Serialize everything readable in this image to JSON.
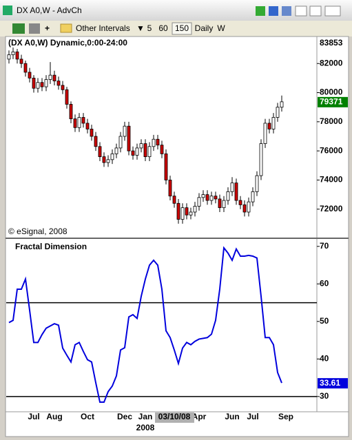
{
  "window": {
    "title": "DX A0,W - AdvCh"
  },
  "toolbar": {
    "interval_menu": "Other Intervals",
    "intervals": [
      "5",
      "60",
      "150",
      "Daily",
      "W"
    ]
  },
  "chart_data": [
    {
      "type": "candlestick",
      "title": "(DX A0,W) Dynamic,0:00-24:00",
      "copyright": "© eSignal, 2008",
      "open": [
        82300,
        82600,
        82800,
        82300,
        82000,
        81400,
        81000,
        80300,
        80700,
        80400,
        80900,
        81200,
        80800,
        80500,
        80200,
        79200,
        78200,
        77600,
        78300,
        77900,
        77500,
        77000,
        76300,
        75600,
        75200,
        75400,
        75800,
        76200,
        77000,
        77700,
        76000,
        75700,
        76200,
        76500,
        75600,
        76300,
        76800,
        76400,
        75800,
        74000,
        72900,
        72400,
        71300,
        72100,
        71600,
        71800,
        72200,
        72800,
        73000,
        72600,
        72900,
        72700,
        72100,
        72600,
        73200,
        73800,
        72600,
        72300,
        71800,
        72500,
        73200,
        74300,
        76500,
        77900,
        77500,
        78300,
        79000,
        null
      ],
      "high": [
        82900,
        83100,
        83000,
        82600,
        82200,
        81700,
        81200,
        81000,
        81000,
        81200,
        82100,
        81500,
        81100,
        80800,
        80400,
        79400,
        78500,
        78600,
        78600,
        78200,
        77800,
        77300,
        76600,
        75900,
        75700,
        76100,
        76500,
        77300,
        78000,
        78000,
        76300,
        76500,
        76800,
        76800,
        76600,
        77100,
        77100,
        76700,
        76100,
        74300,
        73200,
        72700,
        72400,
        72400,
        72100,
        72500,
        73100,
        73300,
        73300,
        73200,
        73200,
        73000,
        72900,
        73500,
        74200,
        74100,
        72900,
        72600,
        72800,
        73500,
        74600,
        76800,
        78200,
        78200,
        78600,
        79300,
        79800,
        null
      ],
      "low": [
        82000,
        82300,
        82000,
        81700,
        81100,
        80700,
        80000,
        80000,
        80100,
        80100,
        80600,
        80500,
        80200,
        79900,
        78900,
        77900,
        77300,
        77300,
        77600,
        77200,
        76700,
        76000,
        75300,
        74900,
        74900,
        75100,
        75500,
        75900,
        76700,
        75700,
        75400,
        75400,
        75900,
        75300,
        75300,
        76000,
        76100,
        75500,
        73700,
        72600,
        72100,
        71000,
        71000,
        71300,
        71300,
        71500,
        71900,
        72500,
        72300,
        72300,
        72400,
        71800,
        71800,
        72300,
        72900,
        72300,
        72000,
        71500,
        71500,
        72200,
        72900,
        74000,
        76200,
        77200,
        77200,
        78000,
        78700,
        null
      ],
      "close": [
        82600,
        82800,
        82300,
        82000,
        81400,
        81000,
        80300,
        80700,
        80400,
        80900,
        81200,
        80800,
        80500,
        80200,
        79200,
        78200,
        77600,
        78300,
        77900,
        77500,
        77000,
        76300,
        75600,
        75200,
        75400,
        75800,
        76200,
        77000,
        77700,
        76000,
        75700,
        76200,
        76500,
        75600,
        76300,
        76800,
        76400,
        75800,
        74000,
        72900,
        72400,
        71300,
        72100,
        71600,
        71800,
        72200,
        72800,
        73000,
        72600,
        72900,
        72700,
        72100,
        72600,
        73200,
        73800,
        72600,
        72300,
        71800,
        72500,
        73200,
        74300,
        76500,
        77900,
        77500,
        78300,
        79000,
        79371,
        null
      ],
      "up_color": "#ffffff",
      "down_color": "#cc0000",
      "last_color": "#008000",
      "ylim": [
        70050,
        83760
      ],
      "yticks": [
        72000,
        74000,
        76000,
        78000,
        80000,
        82000
      ],
      "high_label": 83853
    },
    {
      "type": "line",
      "title": "Fractal Dimension",
      "categories": [
        null,
        null,
        null,
        null,
        null,
        null,
        "Jul",
        null,
        null,
        null,
        null,
        "Aug",
        null,
        null,
        null,
        null,
        null,
        null,
        null,
        "Oct",
        null,
        null,
        null,
        null,
        null,
        null,
        null,
        null,
        "Dec",
        null,
        null,
        null,
        null,
        "Jan",
        null,
        null,
        null,
        null,
        null,
        null,
        null,
        null,
        null,
        null,
        null,
        null,
        "Apr",
        null,
        null,
        null,
        null,
        null,
        null,
        null,
        "Jun",
        null,
        null,
        null,
        null,
        "Jul",
        null,
        null,
        null,
        null,
        null,
        null,
        null,
        "Sep"
      ],
      "values": [
        49.7,
        50.3,
        58.6,
        58.6,
        61.3,
        53.0,
        44.4,
        44.4,
        46.5,
        48.2,
        48.8,
        49.4,
        49.0,
        42.9,
        41.0,
        39.2,
        43.8,
        44.4,
        42.0,
        39.8,
        39.2,
        33.7,
        28.5,
        28.5,
        31.3,
        32.8,
        35.5,
        42.4,
        43.0,
        51.2,
        51.8,
        50.8,
        56.7,
        61.3,
        65.0,
        66.3,
        65.0,
        58.6,
        47.5,
        45.7,
        42.4,
        38.8,
        42.9,
        44.4,
        43.8,
        44.7,
        45.3,
        45.5,
        45.7,
        46.6,
        50.3,
        58.6,
        69.6,
        68.2,
        66.3,
        69.3,
        67.4,
        67.4,
        67.6,
        67.4,
        66.9,
        56.7,
        45.7,
        45.7,
        43.8,
        36.4,
        33.61,
        null
      ],
      "color": "#0000dd",
      "ylim": [
        26.3,
        71.8
      ],
      "yticks": [
        30,
        40,
        50,
        60,
        70
      ],
      "hlines": [
        55,
        30
      ],
      "year_label": "2008",
      "cursor_label": "03/10/08"
    }
  ]
}
